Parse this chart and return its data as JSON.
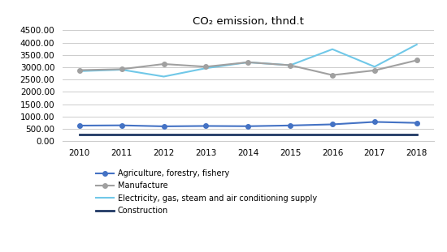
{
  "title": "CO₂ emission, thnd.t",
  "years": [
    2010,
    2011,
    2012,
    2013,
    2014,
    2015,
    2016,
    2017,
    2018
  ],
  "series": {
    "Agriculture, forestry, fishery": {
      "values": [
        630,
        640,
        600,
        615,
        605,
        635,
        680,
        780,
        740
      ],
      "color": "#4472C4",
      "marker": "o",
      "linewidth": 1.5,
      "markersize": 4
    },
    "Manufacture": {
      "values": [
        2880,
        2920,
        3130,
        3020,
        3200,
        3080,
        2680,
        2870,
        3280
      ],
      "color": "#A0A0A0",
      "marker": "o",
      "linewidth": 1.5,
      "markersize": 4
    },
    "Electricity, gas, steam and air conditioning supply": {
      "values": [
        2840,
        2900,
        2620,
        2960,
        3200,
        3080,
        3730,
        3020,
        3920
      ],
      "color": "#70C8E8",
      "marker": null,
      "linewidth": 1.5,
      "markersize": 0
    },
    "Construction": {
      "values": [
        270,
        270,
        270,
        270,
        270,
        270,
        270,
        270,
        270
      ],
      "color": "#1F3864",
      "marker": null,
      "linewidth": 2.0,
      "markersize": 0
    }
  },
  "ylim": [
    0,
    4500
  ],
  "yticks": [
    0,
    500,
    1000,
    1500,
    2000,
    2500,
    3000,
    3500,
    4000,
    4500
  ],
  "background_color": "#ffffff",
  "grid_color": "#cccccc",
  "legend_order": [
    "Agriculture, forestry, fishery",
    "Manufacture",
    "Electricity, gas, steam and air conditioning supply",
    "Construction"
  ]
}
